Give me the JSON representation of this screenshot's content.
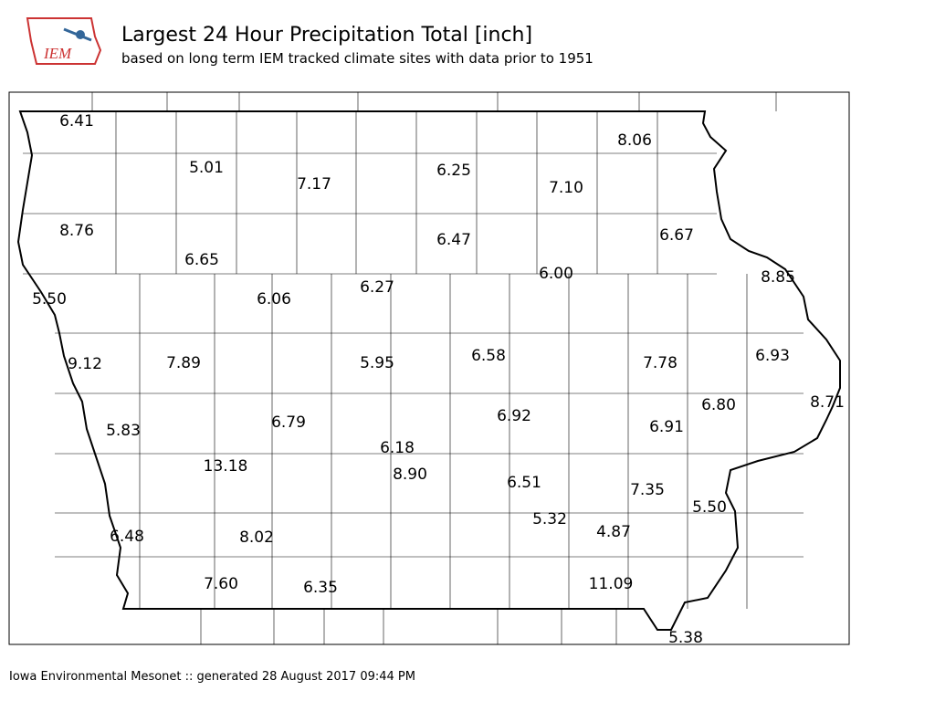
{
  "header": {
    "title": "Largest 24 Hour Precipitation Total [inch]",
    "subtitle": "based on long term IEM tracked climate sites with data prior to 1951",
    "logo_text": "IEM"
  },
  "map": {
    "labels": [
      "6.41",
      "5.01",
      "7.17",
      "6.25",
      "7.10",
      "8.06",
      "8.76",
      "6.65",
      "6.47",
      "6.67",
      "6.00",
      "8.85",
      "5.50",
      "6.06",
      "6.27",
      "9.12",
      "7.89",
      "5.95",
      "6.58",
      "7.78",
      "6.93",
      "8.71",
      "6.80",
      "6.91",
      "6.92",
      "5.83",
      "6.79",
      "6.18",
      "13.18",
      "8.90",
      "6.51",
      "7.35",
      "5.50",
      "5.32",
      "4.87",
      "6.48",
      "8.02",
      "7.60",
      "6.35",
      "11.09",
      "5.38"
    ]
  },
  "footer": {
    "text": "Iowa Environmental Mesonet :: generated 28 August 2017 09:44 PM"
  }
}
